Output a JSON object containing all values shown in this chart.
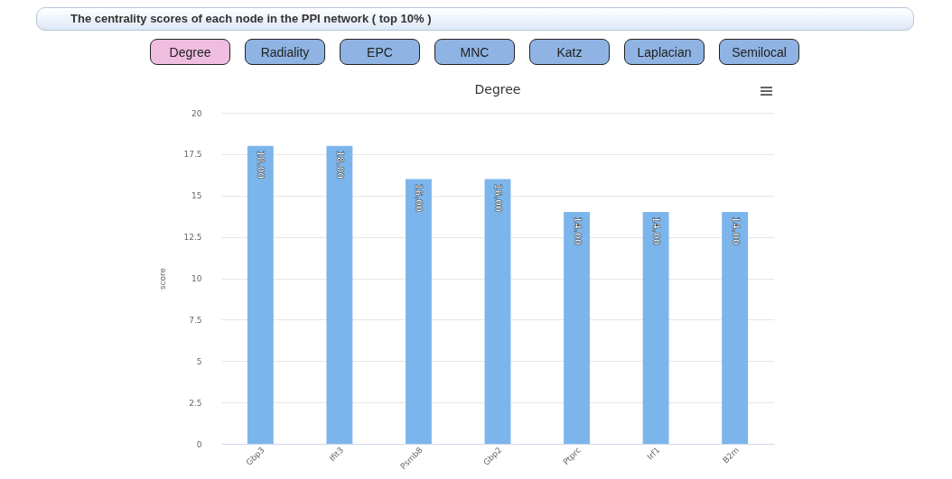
{
  "chart_data": {
    "type": "bar",
    "title": "Degree",
    "ylabel": "score",
    "categories": [
      "Gbp3",
      "Ifit3",
      "Psmb8",
      "Gbp2",
      "Ptprc",
      "Irf1",
      "B2m"
    ],
    "values": [
      18,
      18,
      16,
      16,
      14,
      14,
      14
    ],
    "value_labels": [
      "18.00",
      "18.00",
      "16.00",
      "16.00",
      "14.00",
      "14.00",
      "14.00"
    ],
    "color": "#7cb5ec",
    "ylim": [
      0,
      20
    ],
    "yticks": [
      0,
      2.5,
      5,
      7.5,
      10,
      12.5,
      15,
      17.5,
      20
    ],
    "grid": "y",
    "annotations": [
      "The centrality scores of each node in the PPI network ( top 10% )",
      "Degree",
      "Radiality",
      "EPC",
      "MNC",
      "Katz",
      "Laplacian",
      "Semilocal"
    ]
  }
}
